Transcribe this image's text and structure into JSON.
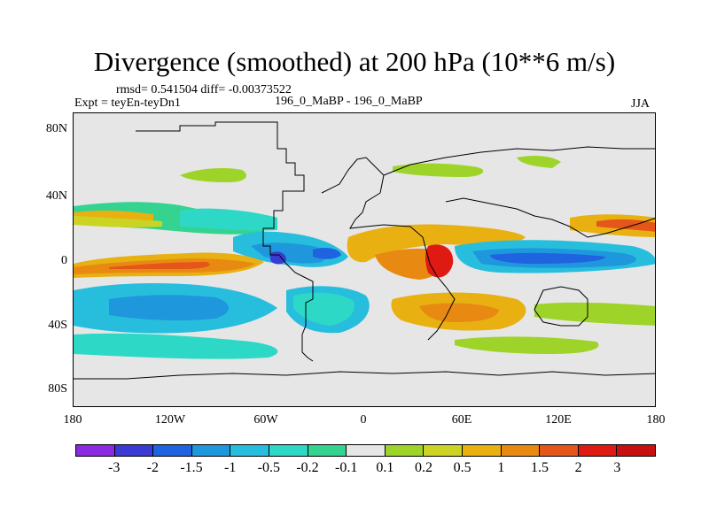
{
  "title": "Divergence (smoothed) at 200 hPa (10**6 m/s)",
  "stats": "rmsd= 0.541504 diff= -0.00373522",
  "expt": "Expt = teyEn-teyDn1",
  "case": "196_0_MaBP - 196_0_MaBP",
  "season": "JJA",
  "chart_data": {
    "type": "heatmap",
    "variable": "Divergence (smoothed) at 200 hPa",
    "units": "10**6 m/s",
    "y_ticks": [
      "80N",
      "40N",
      "0",
      "40S",
      "80S"
    ],
    "x_ticks": [
      "180",
      "120W",
      "60W",
      "0",
      "60E",
      "120E",
      "180"
    ],
    "colorbar_labels": [
      "-3",
      "-2",
      "-1.5",
      "-1",
      "-0.5",
      "-0.2",
      "-0.1",
      "0.1",
      "0.2",
      "0.5",
      "1",
      "1.5",
      "2",
      "3"
    ],
    "colorbar_colors": [
      "#8a2be2",
      "#3a3ad4",
      "#1f63e0",
      "#1f97dd",
      "#27bede",
      "#2ed8c6",
      "#34d38f",
      "#e6e6e6",
      "#9ed42a",
      "#ccd423",
      "#e8b011",
      "#e88a12",
      "#e5561a",
      "#df1a12",
      "#c81010"
    ]
  }
}
